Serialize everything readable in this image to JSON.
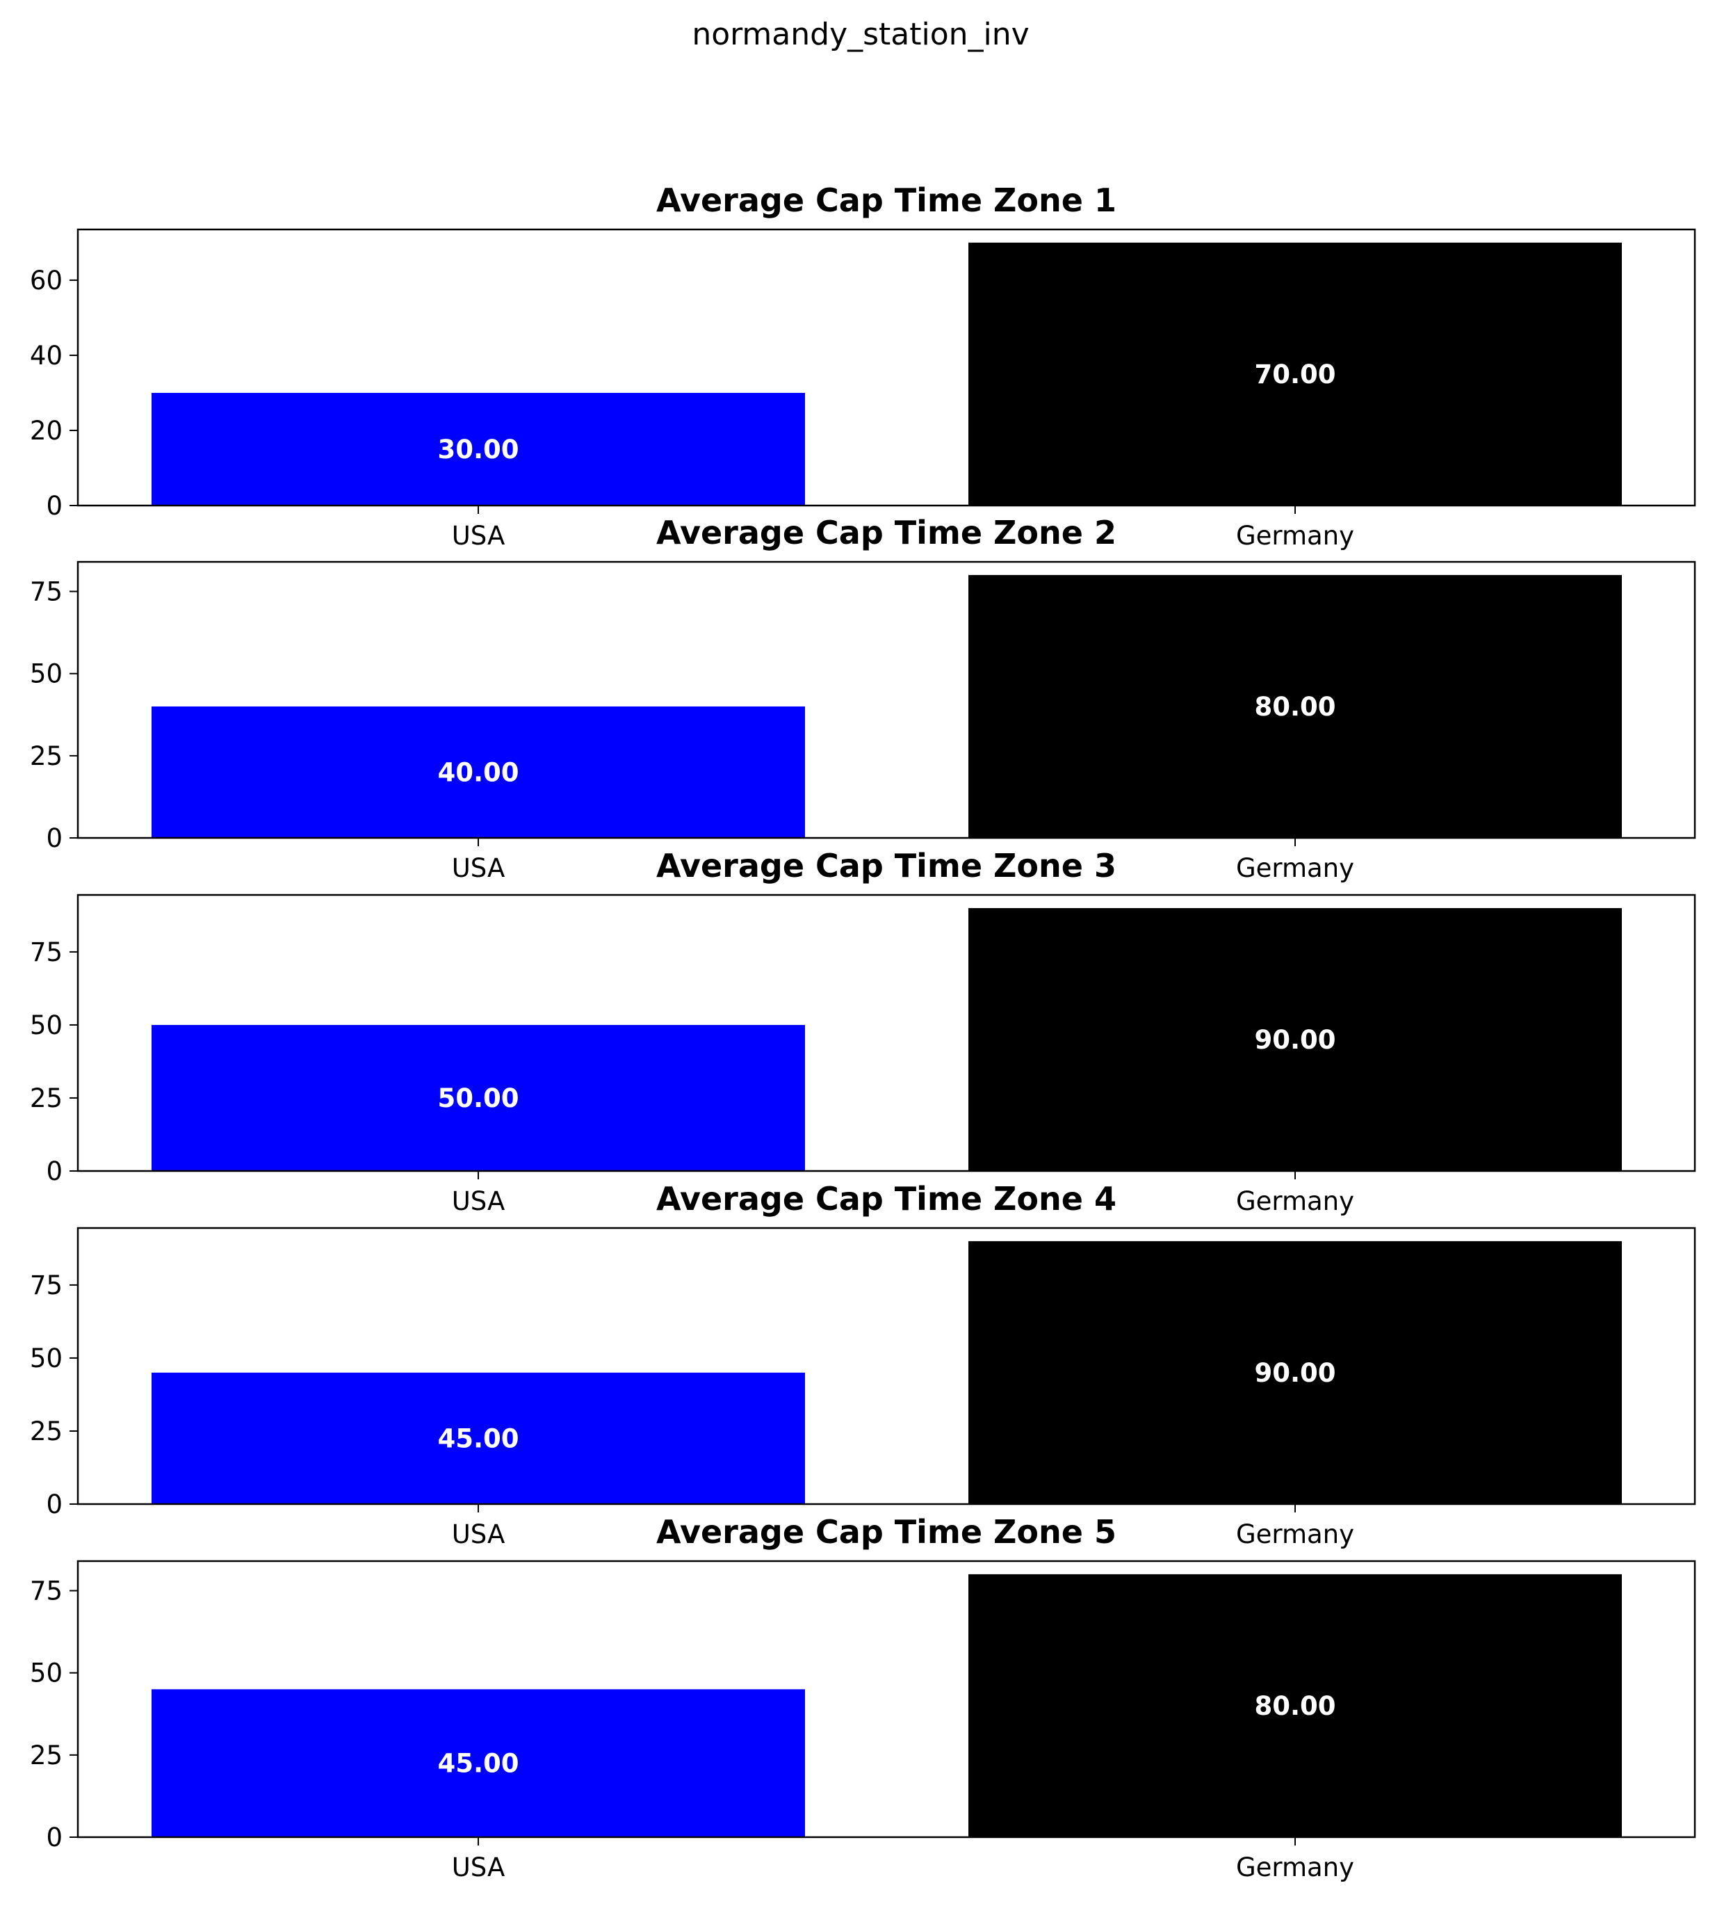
{
  "figure": {
    "title": "normandy_station_inv"
  },
  "chart_data": [
    {
      "type": "bar",
      "title": "Average Cap Time Zone 1",
      "categories": [
        "USA",
        "Germany"
      ],
      "values": [
        30,
        70
      ],
      "value_labels": [
        "30.00",
        "70.00"
      ],
      "colors": [
        "#0000ff",
        "#000000"
      ],
      "yticks": [
        0,
        20,
        40,
        60
      ],
      "ylim": [
        0,
        73.5
      ],
      "grid": false
    },
    {
      "type": "bar",
      "title": "Average Cap Time Zone 2",
      "categories": [
        "USA",
        "Germany"
      ],
      "values": [
        40,
        80
      ],
      "value_labels": [
        "40.00",
        "80.00"
      ],
      "colors": [
        "#0000ff",
        "#000000"
      ],
      "yticks": [
        0,
        25,
        50,
        75
      ],
      "ylim": [
        0,
        84
      ],
      "grid": false
    },
    {
      "type": "bar",
      "title": "Average Cap Time Zone 3",
      "categories": [
        "USA",
        "Germany"
      ],
      "values": [
        50,
        90
      ],
      "value_labels": [
        "50.00",
        "90.00"
      ],
      "colors": [
        "#0000ff",
        "#000000"
      ],
      "yticks": [
        0,
        25,
        50,
        75
      ],
      "ylim": [
        0,
        94.5
      ],
      "grid": false
    },
    {
      "type": "bar",
      "title": "Average Cap Time Zone 4",
      "categories": [
        "USA",
        "Germany"
      ],
      "values": [
        45,
        90
      ],
      "value_labels": [
        "45.00",
        "90.00"
      ],
      "colors": [
        "#0000ff",
        "#000000"
      ],
      "yticks": [
        0,
        25,
        50,
        75
      ],
      "ylim": [
        0,
        94.5
      ],
      "grid": false
    },
    {
      "type": "bar",
      "title": "Average Cap Time Zone 5",
      "categories": [
        "USA",
        "Germany"
      ],
      "values": [
        45,
        80
      ],
      "value_labels": [
        "45.00",
        "80.00"
      ],
      "colors": [
        "#0000ff",
        "#000000"
      ],
      "yticks": [
        0,
        25,
        50,
        75
      ],
      "ylim": [
        0,
        84
      ],
      "grid": false
    }
  ]
}
